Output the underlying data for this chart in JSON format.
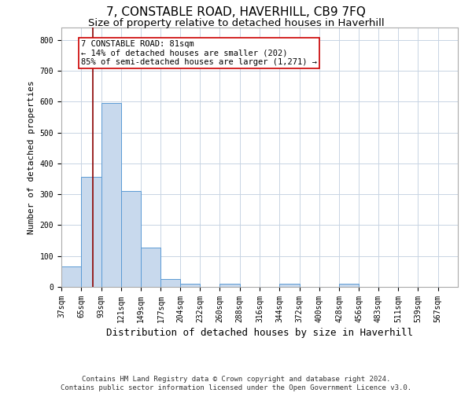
{
  "title": "7, CONSTABLE ROAD, HAVERHILL, CB9 7FQ",
  "subtitle": "Size of property relative to detached houses in Haverhill",
  "xlabel": "Distribution of detached houses by size in Haverhill",
  "ylabel": "Number of detached properties",
  "bin_edges": [
    37,
    65,
    93,
    121,
    149,
    177,
    204,
    232,
    260,
    288,
    316,
    344,
    372,
    400,
    428,
    456,
    483,
    511,
    539,
    567,
    595
  ],
  "bar_heights": [
    65,
    357,
    595,
    311,
    127,
    25,
    10,
    0,
    10,
    0,
    0,
    10,
    0,
    0,
    10,
    0,
    0,
    0,
    0,
    0
  ],
  "bar_color": "#c8d9ed",
  "bar_edgecolor": "#5b9bd5",
  "grid_color": "#c8d4e3",
  "property_size": 81,
  "vline_color": "#8b0000",
  "annotation_text": "7 CONSTABLE ROAD: 81sqm\n← 14% of detached houses are smaller (202)\n85% of semi-detached houses are larger (1,271) →",
  "annotation_box_color": "#ffffff",
  "annotation_box_edgecolor": "#cc0000",
  "footer_text": "Contains HM Land Registry data © Crown copyright and database right 2024.\nContains public sector information licensed under the Open Government Licence v3.0.",
  "ylim": [
    0,
    840
  ],
  "yticks": [
    0,
    100,
    200,
    300,
    400,
    500,
    600,
    700,
    800
  ],
  "title_fontsize": 11,
  "subtitle_fontsize": 9.5,
  "xlabel_fontsize": 9,
  "ylabel_fontsize": 8,
  "tick_fontsize": 7,
  "annotation_fontsize": 7.5,
  "footer_fontsize": 6.5,
  "background_color": "#ffffff"
}
